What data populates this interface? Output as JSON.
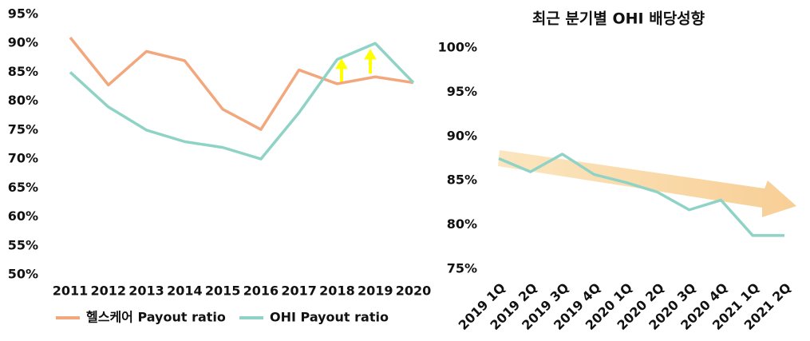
{
  "chart_data": [
    {
      "type": "line",
      "categories": [
        "2011",
        "2012",
        "2013",
        "2014",
        "2015",
        "2016",
        "2017",
        "2018",
        "2019",
        "2020"
      ],
      "ylim": [
        50,
        95
      ],
      "yticks": [
        {
          "value": 50,
          "label": "50%"
        },
        {
          "value": 55,
          "label": "55%"
        },
        {
          "value": 60,
          "label": "60%"
        },
        {
          "value": 65,
          "label": "65%"
        },
        {
          "value": 70,
          "label": "70%"
        },
        {
          "value": 75,
          "label": "75%"
        },
        {
          "value": 80,
          "label": "80%"
        },
        {
          "value": 85,
          "label": "85%"
        },
        {
          "value": 90,
          "label": "90%"
        },
        {
          "value": 95,
          "label": "95%"
        }
      ],
      "series": [
        {
          "name": "헬스케어 Payout ratio",
          "color": "#f2a77d",
          "values": [
            91,
            82.8,
            88.6,
            87,
            78.6,
            75.1,
            85.4,
            83,
            84.2,
            83.2
          ]
        },
        {
          "name": "OHI Payout ratio",
          "color": "#8fd3c6",
          "values": [
            85,
            79,
            75,
            73,
            72,
            70,
            78,
            87.2,
            90,
            83.2
          ]
        }
      ]
    },
    {
      "type": "line",
      "title": "최근 분기별 OHI 배당성향",
      "categories": [
        "2019 1Q",
        "2019 2Q",
        "2019 3Q",
        "2019 4Q",
        "2020 1Q",
        "2020 2Q",
        "2020 3Q",
        "2020 4Q",
        "2021 1Q",
        "2021 2Q"
      ],
      "ylim": [
        75,
        100
      ],
      "yticks": [
        {
          "value": 75,
          "label": "75%"
        },
        {
          "value": 80,
          "label": "80%"
        },
        {
          "value": 85,
          "label": "85%"
        },
        {
          "value": 90,
          "label": "90%"
        },
        {
          "value": 95,
          "label": "95%"
        },
        {
          "value": 100,
          "label": "100%"
        }
      ],
      "series": [
        {
          "color": "#8fd3c6",
          "values": [
            87.5,
            86,
            88,
            85.7,
            84.8,
            83.7,
            81.7,
            82.8,
            78.8,
            78.8
          ]
        }
      ]
    }
  ]
}
